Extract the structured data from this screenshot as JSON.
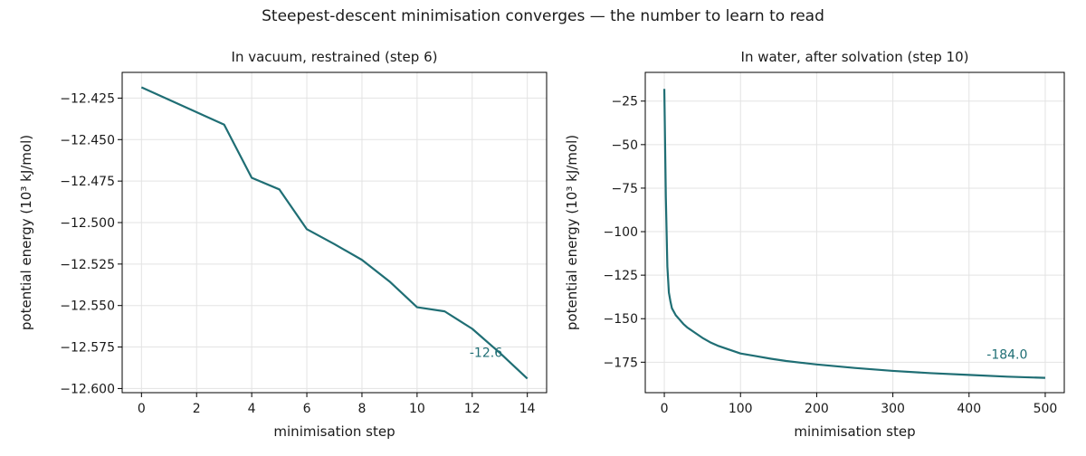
{
  "figure": {
    "suptitle": "Steepest-descent minimisation converges — the number to learn to read"
  },
  "colors": {
    "line": "#1f6e74",
    "grid": "#e3e3e3",
    "axis": "#000000"
  },
  "chart_data": [
    {
      "type": "line",
      "title": "In vacuum, restrained (step 6)",
      "xlabel": "minimisation step",
      "ylabel": "potential energy (10³ kJ/mol)",
      "xlim": [
        -0.7,
        14.7
      ],
      "ylim": [
        -12.6025,
        -12.4095
      ],
      "xticks": [
        0,
        2,
        4,
        6,
        8,
        10,
        12,
        14
      ],
      "xtick_labels": [
        "0",
        "2",
        "4",
        "6",
        "8",
        "10",
        "12",
        "14"
      ],
      "yticks": [
        -12.425,
        -12.45,
        -12.475,
        -12.5,
        -12.525,
        -12.55,
        -12.575,
        -12.6
      ],
      "ytick_labels": [
        "−12.425",
        "−12.450",
        "−12.475",
        "−12.500",
        "−12.525",
        "−12.550",
        "−12.575",
        "−12.600"
      ],
      "grid": true,
      "x": [
        0,
        1,
        2,
        3,
        4,
        5,
        6,
        7,
        8,
        9,
        10,
        11,
        12,
        13,
        14
      ],
      "y": [
        -12.4185,
        -12.426,
        -12.4335,
        -12.441,
        -12.473,
        -12.48,
        -12.504,
        -12.513,
        -12.5225,
        -12.5355,
        -12.551,
        -12.5535,
        -12.564,
        -12.5785,
        -12.594
      ],
      "annotation": {
        "text": "-12.6",
        "x": 12.5,
        "y": -12.581
      }
    },
    {
      "type": "line",
      "title": "In water, after solvation (step 10)",
      "xlabel": "minimisation step",
      "ylabel": "potential energy (10³ kJ/mol)",
      "xlim": [
        -25,
        525
      ],
      "ylim": [
        -192.5,
        -8.5
      ],
      "xticks": [
        0,
        100,
        200,
        300,
        400,
        500
      ],
      "xtick_labels": [
        "0",
        "100",
        "200",
        "300",
        "400",
        "500"
      ],
      "yticks": [
        -25,
        -50,
        -75,
        -100,
        -125,
        -150,
        -175
      ],
      "ytick_labels": [
        "−25",
        "−50",
        "−75",
        "−100",
        "−125",
        "−150",
        "−175"
      ],
      "grid": true,
      "x": [
        0,
        2,
        4,
        6,
        8,
        10,
        15,
        20,
        25,
        30,
        40,
        50,
        60,
        70,
        80,
        90,
        100,
        120,
        140,
        160,
        180,
        200,
        250,
        300,
        350,
        400,
        450,
        500
      ],
      "y": [
        -18,
        -80,
        -120,
        -135,
        -140,
        -144,
        -148,
        -150.5,
        -153,
        -155,
        -158,
        -161,
        -163.5,
        -165.5,
        -167,
        -168.5,
        -170,
        -171.5,
        -173,
        -174.3,
        -175.3,
        -176.3,
        -178.3,
        -180,
        -181.3,
        -182.3,
        -183.3,
        -184.0
      ],
      "annotation": {
        "text": "-184.0",
        "x": 450,
        "y": -173
      }
    }
  ]
}
